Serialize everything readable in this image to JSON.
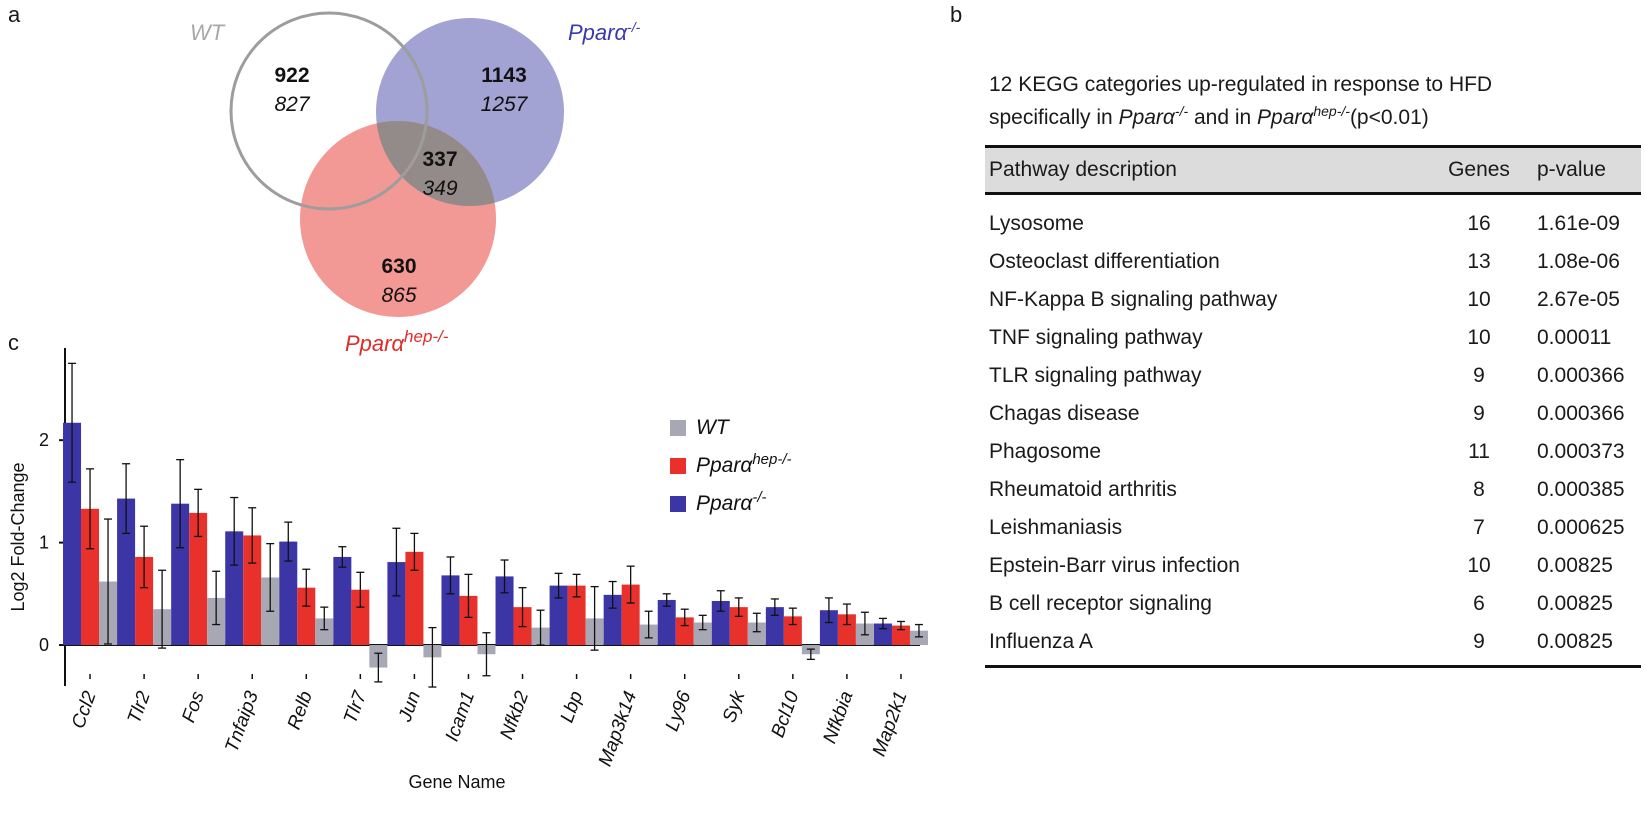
{
  "panel_a": {
    "letter": "a",
    "labels": {
      "wt": "WT",
      "ko_base": "Pparα",
      "ko_sup": "-/-",
      "hep_base": "Pparα",
      "hep_sup": "hep-/-"
    },
    "regions": {
      "wt_only": {
        "bold": "922",
        "italic": "827"
      },
      "ko_only": {
        "bold": "1143",
        "italic": "1257"
      },
      "overlap": {
        "bold": "337",
        "italic": "349"
      },
      "hep_only": {
        "bold": "630",
        "italic": "865"
      }
    },
    "colors": {
      "wt": "#9d9d9d",
      "ko": "#8e8ec9",
      "hep": "#f08a86",
      "overlap": "#8a8a8a",
      "ko_text": "#3a3ab0",
      "hep_text": "#e02b2b",
      "wt_text": "#a8a8a8"
    }
  },
  "panel_b": {
    "letter": "b",
    "title_line1": "12 KEGG categories up-regulated in response to HFD",
    "title_line2_prefix": "specifically in ",
    "title_ko_base": "Pparα",
    "title_ko_sup": "-/-",
    "title_mid": " and in ",
    "title_hep_base": "Pparα",
    "title_hep_sup": "hep-/-",
    "title_suffix": "(p<0.01)",
    "headers": {
      "pathway": "Pathway description",
      "genes": "Genes",
      "pvalue": "p-value"
    },
    "rows": [
      {
        "pathway": "Lysosome",
        "genes": "16",
        "pvalue": "1.61e-09"
      },
      {
        "pathway": "Osteoclast differentiation",
        "genes": "13",
        "pvalue": "1.08e-06"
      },
      {
        "pathway": "NF-Kappa B signaling pathway",
        "genes": "10",
        "pvalue": "2.67e-05"
      },
      {
        "pathway": "TNF signaling pathway",
        "genes": "10",
        "pvalue": "0.00011"
      },
      {
        "pathway": "TLR signaling pathway",
        "genes": "9",
        "pvalue": "0.000366"
      },
      {
        "pathway": "Chagas disease",
        "genes": "9",
        "pvalue": "0.000366"
      },
      {
        "pathway": "Phagosome",
        "genes": "11",
        "pvalue": "0.000373"
      },
      {
        "pathway": "Rheumatoid arthritis",
        "genes": "8",
        "pvalue": "0.000385"
      },
      {
        "pathway": "Leishmaniasis",
        "genes": "7",
        "pvalue": "0.000625"
      },
      {
        "pathway": "Epstein-Barr virus infection",
        "genes": "10",
        "pvalue": "0.00825"
      },
      {
        "pathway": "B cell receptor signaling",
        "genes": "6",
        "pvalue": "0.00825"
      },
      {
        "pathway": "Influenza A",
        "genes": "9",
        "pvalue": "0.00825"
      }
    ]
  },
  "panel_c": {
    "letter": "c"
  },
  "chart_data": {
    "type": "bar",
    "xlabel": "Gene Name",
    "ylabel": "Log2 Fold-Change",
    "ylim": [
      -0.4,
      2.9
    ],
    "yticks": [
      0,
      1,
      2
    ],
    "grid": false,
    "legend_position": "right",
    "categories": [
      "Ccl2",
      "Tlr2",
      "Fos",
      "Tnfaip3",
      "Relb",
      "Tlr7",
      "Jun",
      "Icam1",
      "Nfkb2",
      "Lbp",
      "Map3k14",
      "Ly96",
      "Syk",
      "Bcl10",
      "Nfkbia",
      "Map2k1"
    ],
    "series": [
      {
        "name": "Pparα-/-",
        "label_base": "Pparα",
        "label_sup": "-/-",
        "color": "#3b35a5",
        "values": [
          2.17,
          1.43,
          1.38,
          1.11,
          1.01,
          0.86,
          0.81,
          0.68,
          0.67,
          0.58,
          0.49,
          0.44,
          0.43,
          0.37,
          0.34,
          0.21
        ],
        "errors": [
          0.58,
          0.34,
          0.43,
          0.33,
          0.19,
          0.1,
          0.33,
          0.18,
          0.16,
          0.12,
          0.13,
          0.06,
          0.1,
          0.08,
          0.12,
          0.05
        ]
      },
      {
        "name": "Pparαhep-/-",
        "label_base": "Pparα",
        "label_sup": "hep-/-",
        "color": "#e8312b",
        "values": [
          1.33,
          0.86,
          1.29,
          1.07,
          0.56,
          0.54,
          0.91,
          0.48,
          0.37,
          0.58,
          0.59,
          0.27,
          0.37,
          0.28,
          0.3,
          0.19
        ],
        "errors": [
          0.39,
          0.3,
          0.23,
          0.27,
          0.18,
          0.17,
          0.18,
          0.21,
          0.19,
          0.11,
          0.18,
          0.08,
          0.09,
          0.08,
          0.1,
          0.04
        ]
      },
      {
        "name": "WT",
        "label_base": "WT",
        "label_sup": "",
        "color": "#a8a8b5",
        "values": [
          0.62,
          0.35,
          0.46,
          0.66,
          0.26,
          -0.22,
          -0.12,
          -0.09,
          0.17,
          0.26,
          0.2,
          0.22,
          0.22,
          -0.09,
          0.21,
          0.14
        ],
        "errors": [
          0.61,
          0.38,
          0.26,
          0.33,
          0.11,
          0.14,
          0.29,
          0.21,
          0.17,
          0.31,
          0.13,
          0.07,
          0.09,
          0.05,
          0.11,
          0.06
        ]
      }
    ],
    "legend_order": [
      2,
      1,
      0
    ]
  }
}
